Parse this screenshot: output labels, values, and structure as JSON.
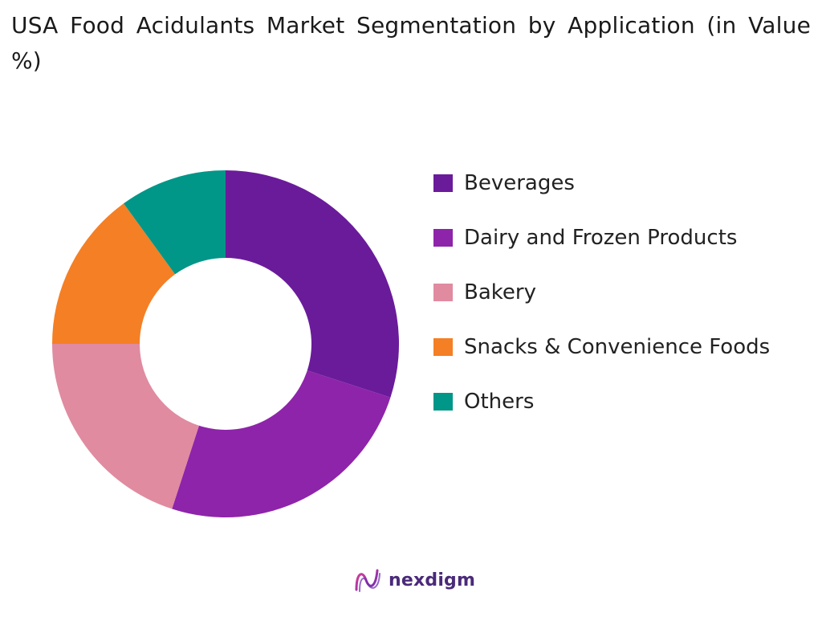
{
  "header": {
    "title": "USA Food Acidulants Market Segmentation by Application (in Value %)"
  },
  "chart_data": {
    "type": "pie",
    "donut": true,
    "categories": [
      "Beverages",
      "Dairy and Frozen Products",
      "Bakery",
      "Snacks & Convenience Foods",
      "Others"
    ],
    "values": [
      30,
      25,
      20,
      15,
      10
    ],
    "colors": [
      "#6A1B9A",
      "#8E24AA",
      "#E08BA0",
      "#F57F24",
      "#009688"
    ],
    "legend_position": "right"
  },
  "brand": {
    "name": "nexdigm",
    "color": "#4a2a7a"
  }
}
